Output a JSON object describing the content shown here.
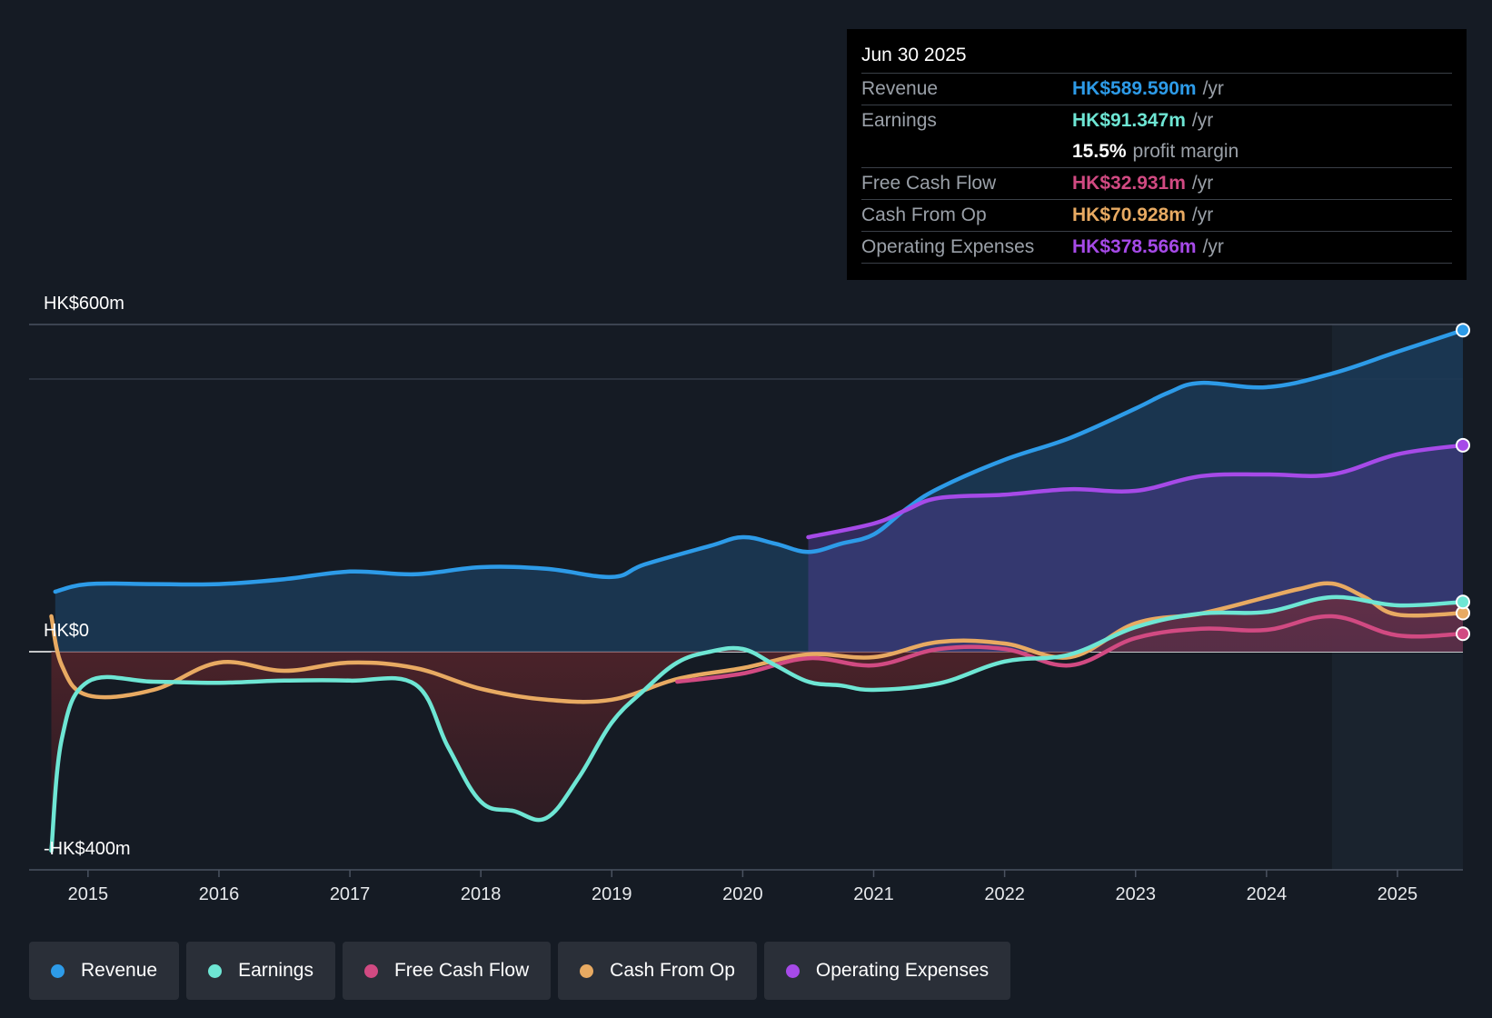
{
  "colors": {
    "revenue": "#2d9be8",
    "earnings": "#6ee6d4",
    "free_cash_flow": "#d14a82",
    "cash_from_op": "#e8aa62",
    "operating_expenses": "#a64ae8"
  },
  "tooltip": {
    "date": "Jun 30 2025",
    "rows": [
      {
        "label": "Revenue",
        "value": "HK$589.590m",
        "unit": "/yr"
      },
      {
        "label": "Earnings",
        "value": "HK$91.347m",
        "unit": "/yr"
      },
      {
        "label": "",
        "value": "15.5%",
        "unit": "profit margin"
      },
      {
        "label": "Free Cash Flow",
        "value": "HK$32.931m",
        "unit": "/yr"
      },
      {
        "label": "Cash From Op",
        "value": "HK$70.928m",
        "unit": "/yr"
      },
      {
        "label": "Operating Expenses",
        "value": "HK$378.566m",
        "unit": "/yr"
      }
    ]
  },
  "legend": [
    {
      "label": "Revenue",
      "key": "revenue"
    },
    {
      "label": "Earnings",
      "key": "earnings"
    },
    {
      "label": "Free Cash Flow",
      "key": "free_cash_flow"
    },
    {
      "label": "Cash From Op",
      "key": "cash_from_op"
    },
    {
      "label": "Operating Expenses",
      "key": "operating_expenses"
    }
  ],
  "chart_data": {
    "type": "line",
    "title": "",
    "xlabel": "",
    "ylabel": "",
    "y_tick_labels": [
      "HK$600m",
      "HK$0",
      "-HK$400m"
    ],
    "y_ticks": [
      600,
      0,
      -400
    ],
    "ylim": [
      -400,
      600
    ],
    "xlim": [
      2014.55,
      2025.5
    ],
    "x_tick_labels": [
      "2015",
      "2016",
      "2017",
      "2018",
      "2019",
      "2020",
      "2021",
      "2022",
      "2023",
      "2024",
      "2025"
    ],
    "x_ticks": [
      2015,
      2016,
      2017,
      2018,
      2019,
      2020,
      2021,
      2022,
      2023,
      2024,
      2025
    ],
    "highlight_from": 2024.5,
    "series": [
      {
        "name": "Revenue",
        "key": "revenue",
        "x": [
          2014.75,
          2015.0,
          2015.5,
          2016.0,
          2016.5,
          2017.0,
          2017.5,
          2018.0,
          2018.5,
          2019.0,
          2019.25,
          2019.75,
          2020.0,
          2020.25,
          2020.5,
          2020.75,
          2021.0,
          2021.25,
          2021.5,
          2022.0,
          2022.5,
          2023.0,
          2023.25,
          2023.5,
          2024.0,
          2024.5,
          2025.0,
          2025.5
        ],
        "values": [
          110,
          124,
          124,
          124,
          133,
          147,
          142,
          155,
          152,
          137,
          160,
          194,
          210,
          198,
          183,
          198,
          215,
          262,
          300,
          352,
          392,
          446,
          475,
          493,
          485,
          510,
          550,
          589.6
        ]
      },
      {
        "name": "Earnings",
        "key": "earnings",
        "x": [
          2014.72,
          2014.8,
          2015.0,
          2015.5,
          2016.0,
          2016.5,
          2017.0,
          2017.5,
          2017.75,
          2018.0,
          2018.25,
          2018.5,
          2018.75,
          2019.0,
          2019.25,
          2019.5,
          2019.75,
          2020.0,
          2020.25,
          2020.5,
          2020.75,
          2021.0,
          2021.5,
          2022.0,
          2022.5,
          2023.0,
          2023.5,
          2024.0,
          2024.5,
          2025.0,
          2025.5
        ],
        "values": [
          -365,
          -160,
          -55,
          -55,
          -57,
          -53,
          -53,
          -60,
          -175,
          -275,
          -292,
          -305,
          -230,
          -130,
          -70,
          -20,
          0,
          5,
          -25,
          -55,
          -62,
          -70,
          -58,
          -18,
          -5,
          45,
          70,
          73,
          100,
          85,
          91.3
        ]
      },
      {
        "name": "Free Cash Flow",
        "key": "free_cash_flow",
        "x": [
          2019.5,
          2020.0,
          2020.5,
          2021.0,
          2021.5,
          2022.0,
          2022.5,
          2023.0,
          2023.5,
          2024.0,
          2024.5,
          2025.0,
          2025.5
        ],
        "values": [
          -55,
          -40,
          -12,
          -25,
          5,
          5,
          -25,
          25,
          42,
          40,
          65,
          30,
          32.9
        ]
      },
      {
        "name": "Cash From Op",
        "key": "cash_from_op",
        "x": [
          2014.72,
          2014.8,
          2015.0,
          2015.5,
          2016.0,
          2016.5,
          2017.0,
          2017.5,
          2018.0,
          2018.5,
          2019.0,
          2019.5,
          2020.0,
          2020.5,
          2021.0,
          2021.5,
          2022.0,
          2022.5,
          2023.0,
          2023.5,
          2024.0,
          2024.25,
          2024.5,
          2024.75,
          2025.0,
          2025.5
        ],
        "values": [
          65,
          -25,
          -80,
          -70,
          -20,
          -35,
          -20,
          -30,
          -68,
          -88,
          -88,
          -50,
          -30,
          -5,
          -10,
          18,
          15,
          -10,
          52,
          70,
          100,
          115,
          125,
          100,
          68,
          70.9
        ]
      },
      {
        "name": "Operating Expenses",
        "key": "operating_expenses",
        "x": [
          2020.5,
          2021.0,
          2021.25,
          2021.5,
          2022.0,
          2022.5,
          2023.0,
          2023.5,
          2024.0,
          2024.5,
          2025.0,
          2025.5
        ],
        "values": [
          210,
          235,
          260,
          282,
          288,
          298,
          295,
          322,
          325,
          325,
          362,
          378.6
        ]
      }
    ]
  }
}
